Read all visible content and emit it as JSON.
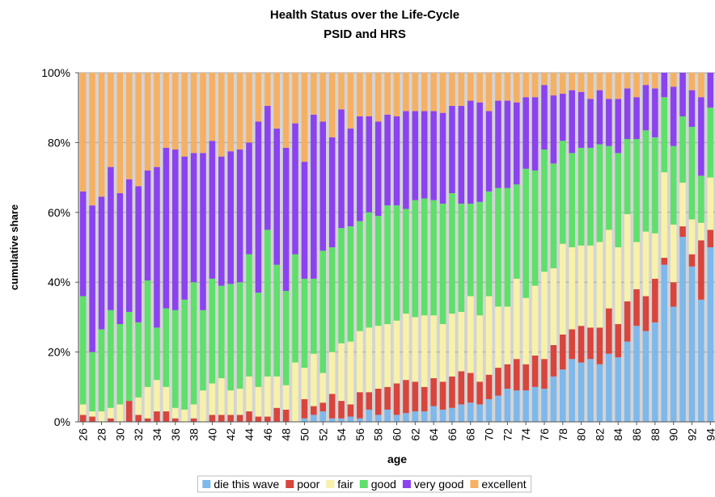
{
  "chart_data": {
    "type": "stacked_bar",
    "title": "Health Status over the Life-Cycle",
    "subtitle": "PSID and HRS",
    "x_label": "age",
    "y_label": "cumulative share",
    "categories": [
      "26",
      null,
      "28",
      null,
      "30",
      null,
      "32",
      null,
      "34",
      null,
      "36",
      null,
      "38",
      null,
      "40",
      null,
      "42",
      null,
      "44",
      null,
      "46",
      null,
      "48",
      null,
      "50",
      null,
      "52",
      null,
      "54",
      null,
      "56",
      null,
      "58",
      null,
      "60",
      null,
      "62",
      null,
      "64",
      null,
      "66",
      null,
      "68",
      null,
      "70",
      null,
      "72",
      null,
      "74",
      null,
      "76",
      null,
      "78",
      null,
      "80",
      null,
      "82",
      null,
      "84",
      null,
      "86",
      null,
      "88",
      null,
      "90",
      null,
      "92",
      null,
      "94"
    ],
    "ylim": [
      0,
      100
    ],
    "yticks": [
      {
        "value": 0,
        "label": "0%"
      },
      {
        "value": 20,
        "label": "20%"
      },
      {
        "value": 40,
        "label": "40%"
      },
      {
        "value": 60,
        "label": "60%"
      },
      {
        "value": 80,
        "label": "80%"
      },
      {
        "value": 100,
        "label": "100%"
      }
    ],
    "grid": true,
    "legend": "bottom",
    "series": [
      {
        "name": "die this wave",
        "color": "#7fb8ea",
        "values": [
          0,
          0,
          0,
          0,
          0,
          0,
          0,
          0,
          0,
          0,
          0,
          0,
          0,
          0,
          0,
          0,
          0,
          0,
          0,
          0,
          0,
          0,
          0,
          0,
          1,
          2,
          3,
          1,
          1,
          1.5,
          1,
          3.5,
          2,
          3.5,
          2,
          2.5,
          3,
          3,
          4.5,
          3.5,
          4,
          5,
          5.5,
          5,
          6.5,
          7.5,
          9.5,
          9,
          9,
          10,
          9.5,
          13,
          15,
          18,
          17,
          18,
          16.5,
          19.5,
          18.5,
          23,
          27.5,
          26,
          28.5,
          45,
          33,
          53,
          44.5,
          35,
          50
        ]
      },
      {
        "name": "poor",
        "color": "#d8453c",
        "values": [
          2,
          1.5,
          0,
          1,
          0,
          6,
          2,
          1,
          3,
          3,
          1,
          0,
          1,
          0,
          2,
          2,
          2,
          2,
          3,
          1.5,
          1.5,
          4,
          3.5,
          0,
          5.5,
          2.5,
          2.5,
          7,
          5,
          3.5,
          7.5,
          5,
          7.5,
          6.5,
          9,
          9.5,
          8.5,
          7,
          8,
          8,
          9,
          9.5,
          8.5,
          6.5,
          7,
          8,
          7,
          9,
          7.5,
          9,
          8.5,
          9,
          10,
          8.5,
          10.5,
          9,
          10.5,
          13,
          9.5,
          11.5,
          10.5,
          10,
          12.5,
          2,
          7,
          3,
          3.5,
          17,
          5
        ]
      },
      {
        "name": "fair",
        "color": "#f8f1aa",
        "values": [
          3,
          1.5,
          3,
          3,
          5,
          0,
          5,
          9,
          9,
          7,
          3,
          3.5,
          4,
          9,
          9,
          10.5,
          7,
          7.5,
          10,
          8.5,
          11.5,
          9,
          7,
          17,
          9,
          15,
          8.5,
          12,
          16.5,
          18,
          17.5,
          18.5,
          18,
          18,
          18,
          19,
          18.5,
          20.5,
          18,
          16.5,
          18,
          17,
          22,
          19,
          22.5,
          17.5,
          16.5,
          23,
          19,
          20,
          25,
          22,
          26,
          23.5,
          23,
          23.5,
          24.5,
          22.5,
          22,
          25,
          13.5,
          18.5,
          13,
          24.5,
          16.5,
          12.5,
          10,
          5,
          15
        ]
      },
      {
        "name": "good",
        "color": "#5fdf6b",
        "values": [
          31,
          17,
          23.5,
          28,
          23,
          25.5,
          21.5,
          30.5,
          15,
          22.5,
          28,
          31.5,
          35,
          23,
          30,
          26.5,
          30.5,
          30.5,
          35,
          27,
          42,
          32,
          27,
          31,
          25.5,
          21.5,
          35,
          30,
          33,
          33,
          31.5,
          33,
          31.5,
          34,
          33,
          30,
          33.5,
          33.5,
          33,
          34.5,
          34.5,
          31,
          26.5,
          32.5,
          30,
          34,
          34,
          27,
          37,
          33,
          35,
          30,
          29.5,
          27,
          28,
          28,
          28,
          24,
          27,
          21.5,
          29.5,
          29,
          27.5,
          21.5,
          22.5,
          19,
          26.5,
          13.5,
          20
        ]
      },
      {
        "name": "very good",
        "color": "#8b42ef",
        "values": [
          30,
          42,
          38,
          41,
          37.5,
          38,
          39,
          31.5,
          46,
          46,
          46,
          41,
          37,
          45,
          39.5,
          37,
          38,
          38,
          32,
          49,
          35.5,
          39,
          41,
          37.5,
          33.5,
          47,
          37,
          31.5,
          34,
          28,
          30,
          27.5,
          27,
          26,
          25.5,
          28,
          25.5,
          25,
          25.5,
          26,
          25,
          28,
          29.5,
          28.5,
          23,
          25,
          25,
          23.5,
          20.5,
          21,
          18.5,
          19.5,
          13.5,
          18,
          16,
          14,
          15.5,
          13.5,
          15.5,
          14.5,
          12,
          13,
          14,
          7,
          17,
          12.5,
          10.5,
          22.5,
          10
        ]
      },
      {
        "name": "excellent",
        "color": "#f5b064",
        "values": [
          34,
          38,
          35.5,
          27,
          34.5,
          30.5,
          32.5,
          28,
          27,
          21.5,
          22,
          24,
          23,
          23,
          19.5,
          24,
          22.5,
          22,
          20,
          14,
          9.5,
          16,
          21.5,
          14.5,
          25.5,
          12,
          14,
          18.5,
          10.5,
          16,
          12.5,
          12.5,
          14,
          12,
          12.5,
          11,
          11,
          11,
          11,
          11.5,
          9.5,
          9.5,
          8,
          8.5,
          11,
          8,
          8,
          8.5,
          7,
          7,
          3.5,
          6.5,
          6,
          5,
          5.5,
          7.5,
          5,
          7.5,
          7.5,
          4.5,
          7,
          3.5,
          4.5,
          0,
          4,
          0,
          5,
          7,
          0
        ]
      }
    ]
  }
}
